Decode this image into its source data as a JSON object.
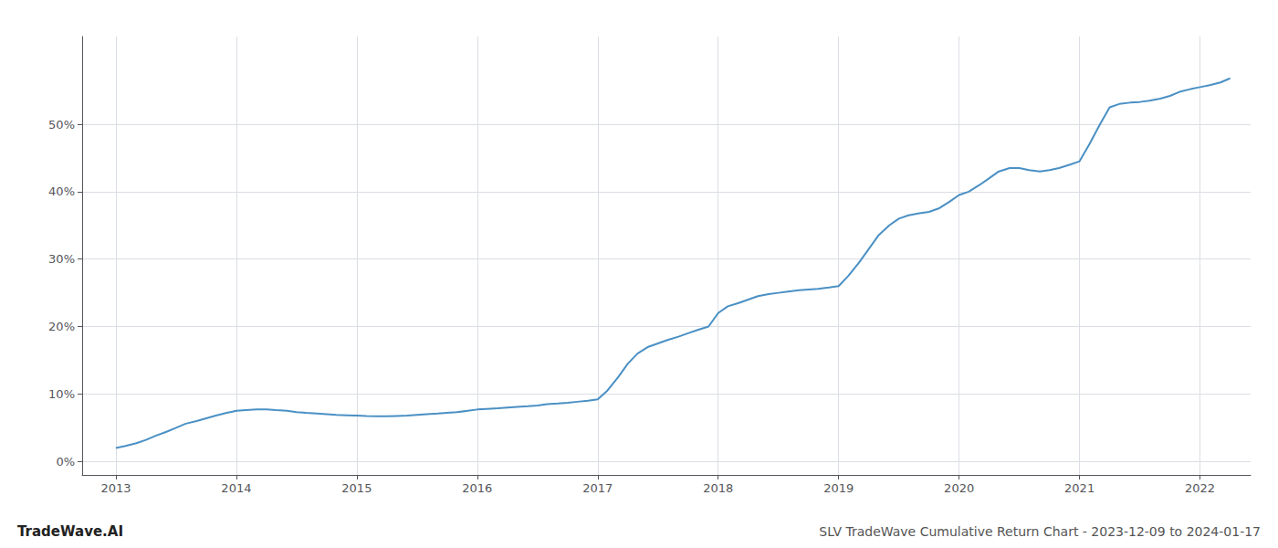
{
  "chart_data": {
    "type": "line",
    "title": "SLV TradeWave Cumulative Return Chart - 2023-12-09 to 2024-01-17",
    "annotations": [
      "TradeWave.AI"
    ],
    "color": "#4a90c4",
    "grid": true,
    "x": [
      2013.0,
      2013.08,
      2013.17,
      2013.25,
      2013.33,
      2013.42,
      2013.5,
      2013.58,
      2013.67,
      2013.75,
      2013.83,
      2013.92,
      2014.0,
      2014.08,
      2014.17,
      2014.25,
      2014.33,
      2014.42,
      2014.5,
      2014.58,
      2014.67,
      2014.75,
      2014.83,
      2014.92,
      2015.0,
      2015.08,
      2015.17,
      2015.25,
      2015.33,
      2015.42,
      2015.5,
      2015.58,
      2015.67,
      2015.75,
      2015.83,
      2015.92,
      2016.0,
      2016.08,
      2016.17,
      2016.25,
      2016.33,
      2016.42,
      2016.5,
      2016.58,
      2016.67,
      2016.75,
      2016.83,
      2016.92,
      2017.0,
      2017.08,
      2017.17,
      2017.25,
      2017.33,
      2017.42,
      2017.5,
      2017.58,
      2017.67,
      2017.75,
      2017.83,
      2017.92,
      2018.0,
      2018.08,
      2018.17,
      2018.25,
      2018.33,
      2018.42,
      2018.5,
      2018.58,
      2018.67,
      2018.75,
      2018.83,
      2018.92,
      2019.0,
      2019.08,
      2019.17,
      2019.25,
      2019.33,
      2019.42,
      2019.5,
      2019.58,
      2019.67,
      2019.75,
      2019.83,
      2019.92,
      2020.0,
      2020.08,
      2020.17,
      2020.25,
      2020.33,
      2020.42,
      2020.5,
      2020.58,
      2020.67,
      2020.75,
      2020.83,
      2020.92,
      2021.0,
      2021.08,
      2021.17,
      2021.25,
      2021.33,
      2021.42,
      2021.5,
      2021.58,
      2021.67,
      2021.75,
      2021.83,
      2021.92,
      2022.0,
      2022.08,
      2022.17,
      2022.25
    ],
    "values": [
      2.0,
      2.3,
      2.7,
      3.2,
      3.8,
      4.4,
      5.0,
      5.6,
      6.0,
      6.4,
      6.8,
      7.2,
      7.5,
      7.6,
      7.7,
      7.7,
      7.6,
      7.5,
      7.3,
      7.2,
      7.1,
      7.0,
      6.9,
      6.85,
      6.8,
      6.75,
      6.7,
      6.7,
      6.75,
      6.8,
      6.9,
      7.0,
      7.1,
      7.2,
      7.3,
      7.5,
      7.7,
      7.8,
      7.9,
      8.0,
      8.1,
      8.2,
      8.3,
      8.5,
      8.6,
      8.7,
      8.85,
      9.0,
      9.2,
      10.5,
      12.5,
      14.5,
      16.0,
      17.0,
      17.5,
      18.0,
      18.5,
      19.0,
      19.5,
      20.0,
      22.0,
      23.0,
      23.5,
      24.0,
      24.5,
      24.8,
      25.0,
      25.2,
      25.4,
      25.5,
      25.6,
      25.8,
      26.0,
      27.5,
      29.5,
      31.5,
      33.5,
      35.0,
      36.0,
      36.5,
      36.8,
      37.0,
      37.5,
      38.5,
      39.5,
      40.0,
      41.0,
      42.0,
      43.0,
      43.5,
      43.5,
      43.2,
      43.0,
      43.2,
      43.5,
      44.0,
      44.5,
      47.0,
      50.0,
      52.5,
      53.0,
      53.2,
      53.3,
      53.5,
      53.8,
      54.2,
      54.8,
      55.2,
      55.5,
      55.8,
      56.2,
      56.8
    ],
    "xlim": [
      2012.72,
      2022.42
    ],
    "xticks": [
      2013,
      2014,
      2015,
      2016,
      2017,
      2018,
      2019,
      2020,
      2021,
      2022
    ],
    "ylim": [
      -2,
      63
    ],
    "yticks": [
      {
        "value": 0,
        "label": "0%"
      },
      {
        "value": 10,
        "label": "10%"
      },
      {
        "value": 20,
        "label": "20%"
      },
      {
        "value": 30,
        "label": "30%"
      },
      {
        "value": 40,
        "label": "40%"
      },
      {
        "value": 50,
        "label": "50%"
      }
    ]
  }
}
